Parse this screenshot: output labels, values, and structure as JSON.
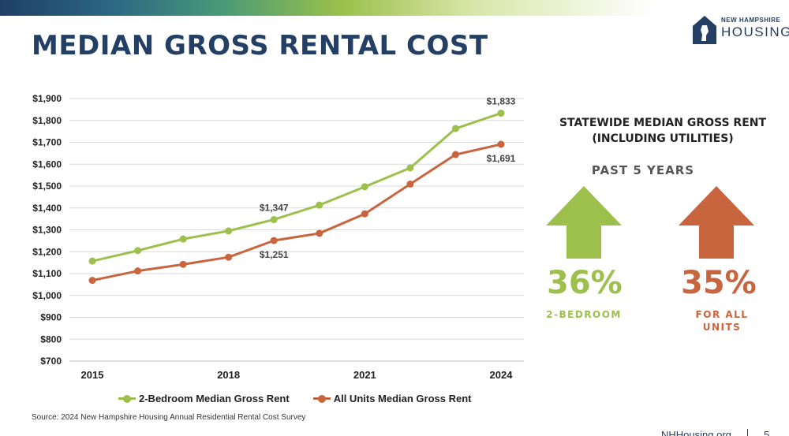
{
  "header": {
    "title": "MEDIAN GROSS RENTAL COST",
    "logo_top": "NEW HAMPSHIRE",
    "logo_main": "HOUSING"
  },
  "colors": {
    "two_bedroom": "#9dc04d",
    "all_units": "#c8653e",
    "title": "#243f64"
  },
  "chart_data": {
    "type": "line",
    "x": [
      2015,
      2016,
      2017,
      2018,
      2019,
      2020,
      2021,
      2022,
      2023,
      2024
    ],
    "x_tick_labels": [
      "2015",
      "2018",
      "2021",
      "2024"
    ],
    "series": [
      {
        "name": "2-Bedroom Median Gross Rent",
        "values": [
          1157,
          1205,
          1258,
          1295,
          1347,
          1413,
          1497,
          1583,
          1763,
          1833
        ]
      },
      {
        "name": "All Units Median Gross Rent",
        "values": [
          1069,
          1112,
          1142,
          1175,
          1251,
          1284,
          1373,
          1509,
          1644,
          1691
        ]
      }
    ],
    "data_labels": [
      {
        "series": 0,
        "index": 4,
        "text": "$1,347",
        "position": "above"
      },
      {
        "series": 0,
        "index": 9,
        "text": "$1,833",
        "position": "above"
      },
      {
        "series": 1,
        "index": 4,
        "text": "$1,251",
        "position": "below"
      },
      {
        "series": 1,
        "index": 9,
        "text": "$1,691",
        "position": "below"
      }
    ],
    "y_ticks": [
      700,
      800,
      900,
      1000,
      1100,
      1200,
      1300,
      1400,
      1500,
      1600,
      1700,
      1800,
      1900
    ],
    "y_tick_labels": [
      "$700",
      "$800",
      "$900",
      "$1,000",
      "$1,100",
      "$1,200",
      "$1,300",
      "$1,400",
      "$1,500",
      "$1,600",
      "$1,700",
      "$1,800",
      "$1,900"
    ],
    "ylim": [
      700,
      1900
    ],
    "grid": true,
    "legend": "bottom"
  },
  "legend": {
    "items": [
      "2-Bedroom Median Gross Rent",
      "All Units Median Gross Rent"
    ]
  },
  "panel": {
    "title_line1": "STATEWIDE MEDIAN GROSS RENT",
    "title_line2": "(INCLUDING UTILITIES)",
    "subtitle": "PAST 5 YEARS",
    "two_bedroom_pct": "36%",
    "two_bedroom_label": "2-BEDROOM",
    "all_units_pct": "35%",
    "all_units_label_line1": "FOR ALL",
    "all_units_label_line2": "UNITS",
    "arrow_icon": "up-arrow-icon"
  },
  "footer": {
    "source": "Source: 2024 New Hampshire Housing Annual Residential Rental Cost Survey",
    "url": "NHHousing.org",
    "page_number": "5"
  }
}
